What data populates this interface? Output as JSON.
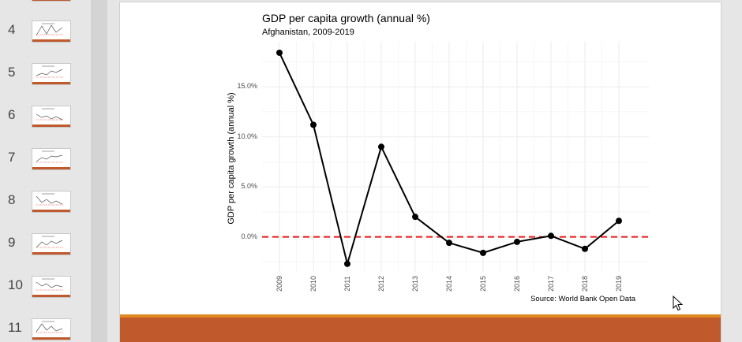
{
  "thumbnails": [
    {
      "num": "4"
    },
    {
      "num": "5"
    },
    {
      "num": "6"
    },
    {
      "num": "7"
    },
    {
      "num": "8"
    },
    {
      "num": "9"
    },
    {
      "num": "10"
    },
    {
      "num": "11"
    }
  ],
  "colors": {
    "accent": "#c0592b",
    "accent_line": "#e0891e",
    "zero_line": "#e8191a"
  },
  "chart_data": {
    "type": "line",
    "title": "GDP per capita growth (annual %)",
    "subtitle": "Afghanistan, 2009-2019",
    "xlabel": "",
    "ylabel": "GDP per capita growth (annual %)",
    "source": "Source: World Bank Open Data",
    "x": [
      "2009",
      "2010",
      "2011",
      "2012",
      "2013",
      "2014",
      "2015",
      "2016",
      "2017",
      "2018",
      "2019"
    ],
    "values": [
      18.4,
      11.2,
      -2.7,
      9.0,
      2.0,
      -0.6,
      -1.6,
      -0.5,
      0.1,
      -1.2,
      1.6
    ],
    "ylim": [
      -3.5,
      19.5
    ],
    "yticks": [
      {
        "value": 0,
        "label": "0.0%"
      },
      {
        "value": 5,
        "label": "5.0%"
      },
      {
        "value": 10,
        "label": "10.0%"
      },
      {
        "value": 15,
        "label": "15.0%"
      }
    ],
    "reference_line": {
      "value": 0,
      "style": "dashed"
    },
    "grid": true,
    "legend": "none"
  }
}
